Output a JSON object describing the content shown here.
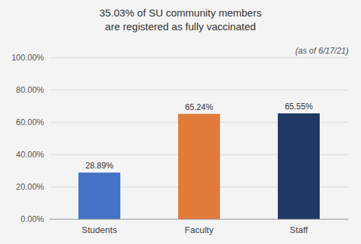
{
  "chart_data": {
    "type": "bar",
    "title": "35.03% of SU community members\nare registered as fully vaccinated",
    "subtitle": "(as of 6/17/21)",
    "categories": [
      "Students",
      "Faculty",
      "Staff"
    ],
    "values": [
      28.89,
      65.24,
      65.55
    ],
    "value_labels": [
      "28.89%",
      "65.24%",
      "65.55%"
    ],
    "data_labels": true,
    "colors": [
      "#4472c4",
      "#e07b39",
      "#1f3864"
    ],
    "ylim": [
      0,
      100
    ],
    "yticks": [
      {
        "value": 0,
        "label": "0.00%"
      },
      {
        "value": 20,
        "label": "20.00%"
      },
      {
        "value": 40,
        "label": "40.00%"
      },
      {
        "value": 60,
        "label": "60.00%"
      },
      {
        "value": 80,
        "label": "80.00%"
      },
      {
        "value": 100,
        "label": "100.00%"
      }
    ],
    "grid": true
  }
}
